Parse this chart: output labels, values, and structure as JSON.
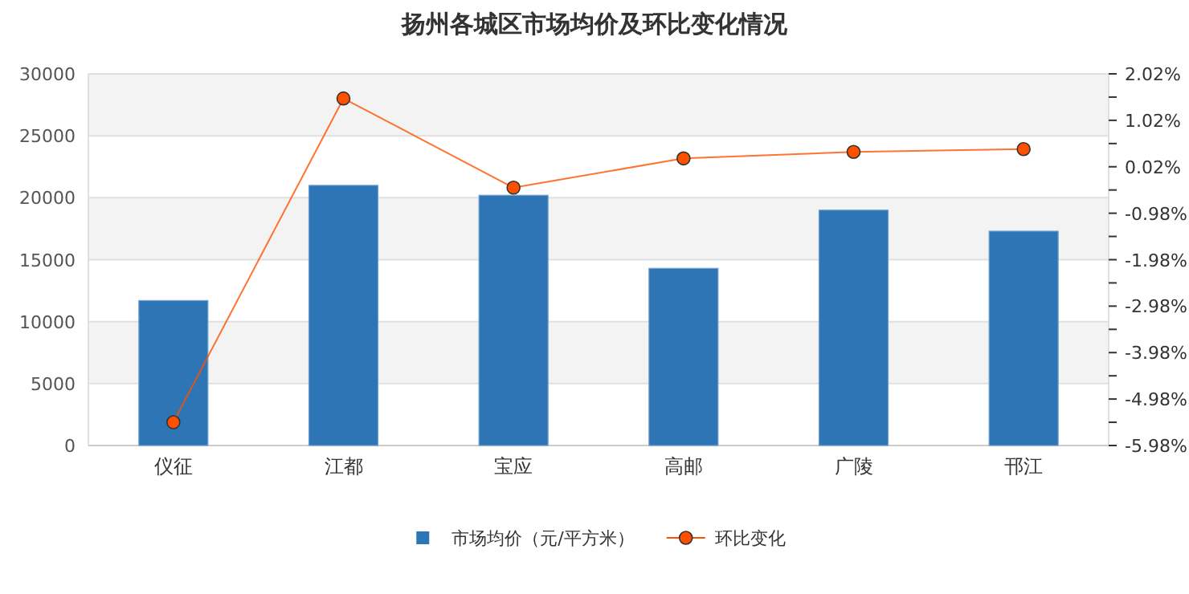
{
  "chart_data": {
    "type": "bar",
    "title": "扬州各城区市场均价及环比变化情况",
    "categories": [
      "仪征",
      "江都",
      "宝应",
      "高邮",
      "广陵",
      "邗江"
    ],
    "series": [
      {
        "name": "市场均价（元/平方米）",
        "color": "#2e75b6",
        "values": [
          11700,
          21000,
          20200,
          14300,
          19000,
          17300
        ]
      },
      {
        "name": "环比变化",
        "type": "line",
        "axis": "y2",
        "color": "#ff5000",
        "marker": "circle",
        "values": [
          -5.48,
          1.49,
          -0.43,
          0.2,
          0.34,
          0.4
        ]
      }
    ],
    "ylim": [
      0,
      30000
    ],
    "yticks": [
      0,
      5000,
      10000,
      15000,
      20000,
      25000,
      30000
    ],
    "y2lim": [
      -5.98,
      2.02
    ],
    "y2ticks": [
      {
        "value": -5.98,
        "label": "-5.98%"
      },
      {
        "value": -5.48,
        "label": null
      },
      {
        "value": -4.98,
        "label": "-4.98%"
      },
      {
        "value": -4.48,
        "label": null
      },
      {
        "value": -3.98,
        "label": "-3.98%"
      },
      {
        "value": -3.48,
        "label": null
      },
      {
        "value": -2.98,
        "label": "-2.98%"
      },
      {
        "value": -2.48,
        "label": null
      },
      {
        "value": -1.98,
        "label": "-1.98%"
      },
      {
        "value": -1.48,
        "label": null
      },
      {
        "value": -0.98,
        "label": "-0.98%"
      },
      {
        "value": -0.48,
        "label": null
      },
      {
        "value": 0.02,
        "label": "0.02%"
      },
      {
        "value": 0.52,
        "label": null
      },
      {
        "value": 1.02,
        "label": "1.02%"
      },
      {
        "value": 1.52,
        "label": null
      },
      {
        "value": 2.02,
        "label": "2.02%"
      }
    ],
    "grid": "y",
    "legend": "bottom"
  }
}
